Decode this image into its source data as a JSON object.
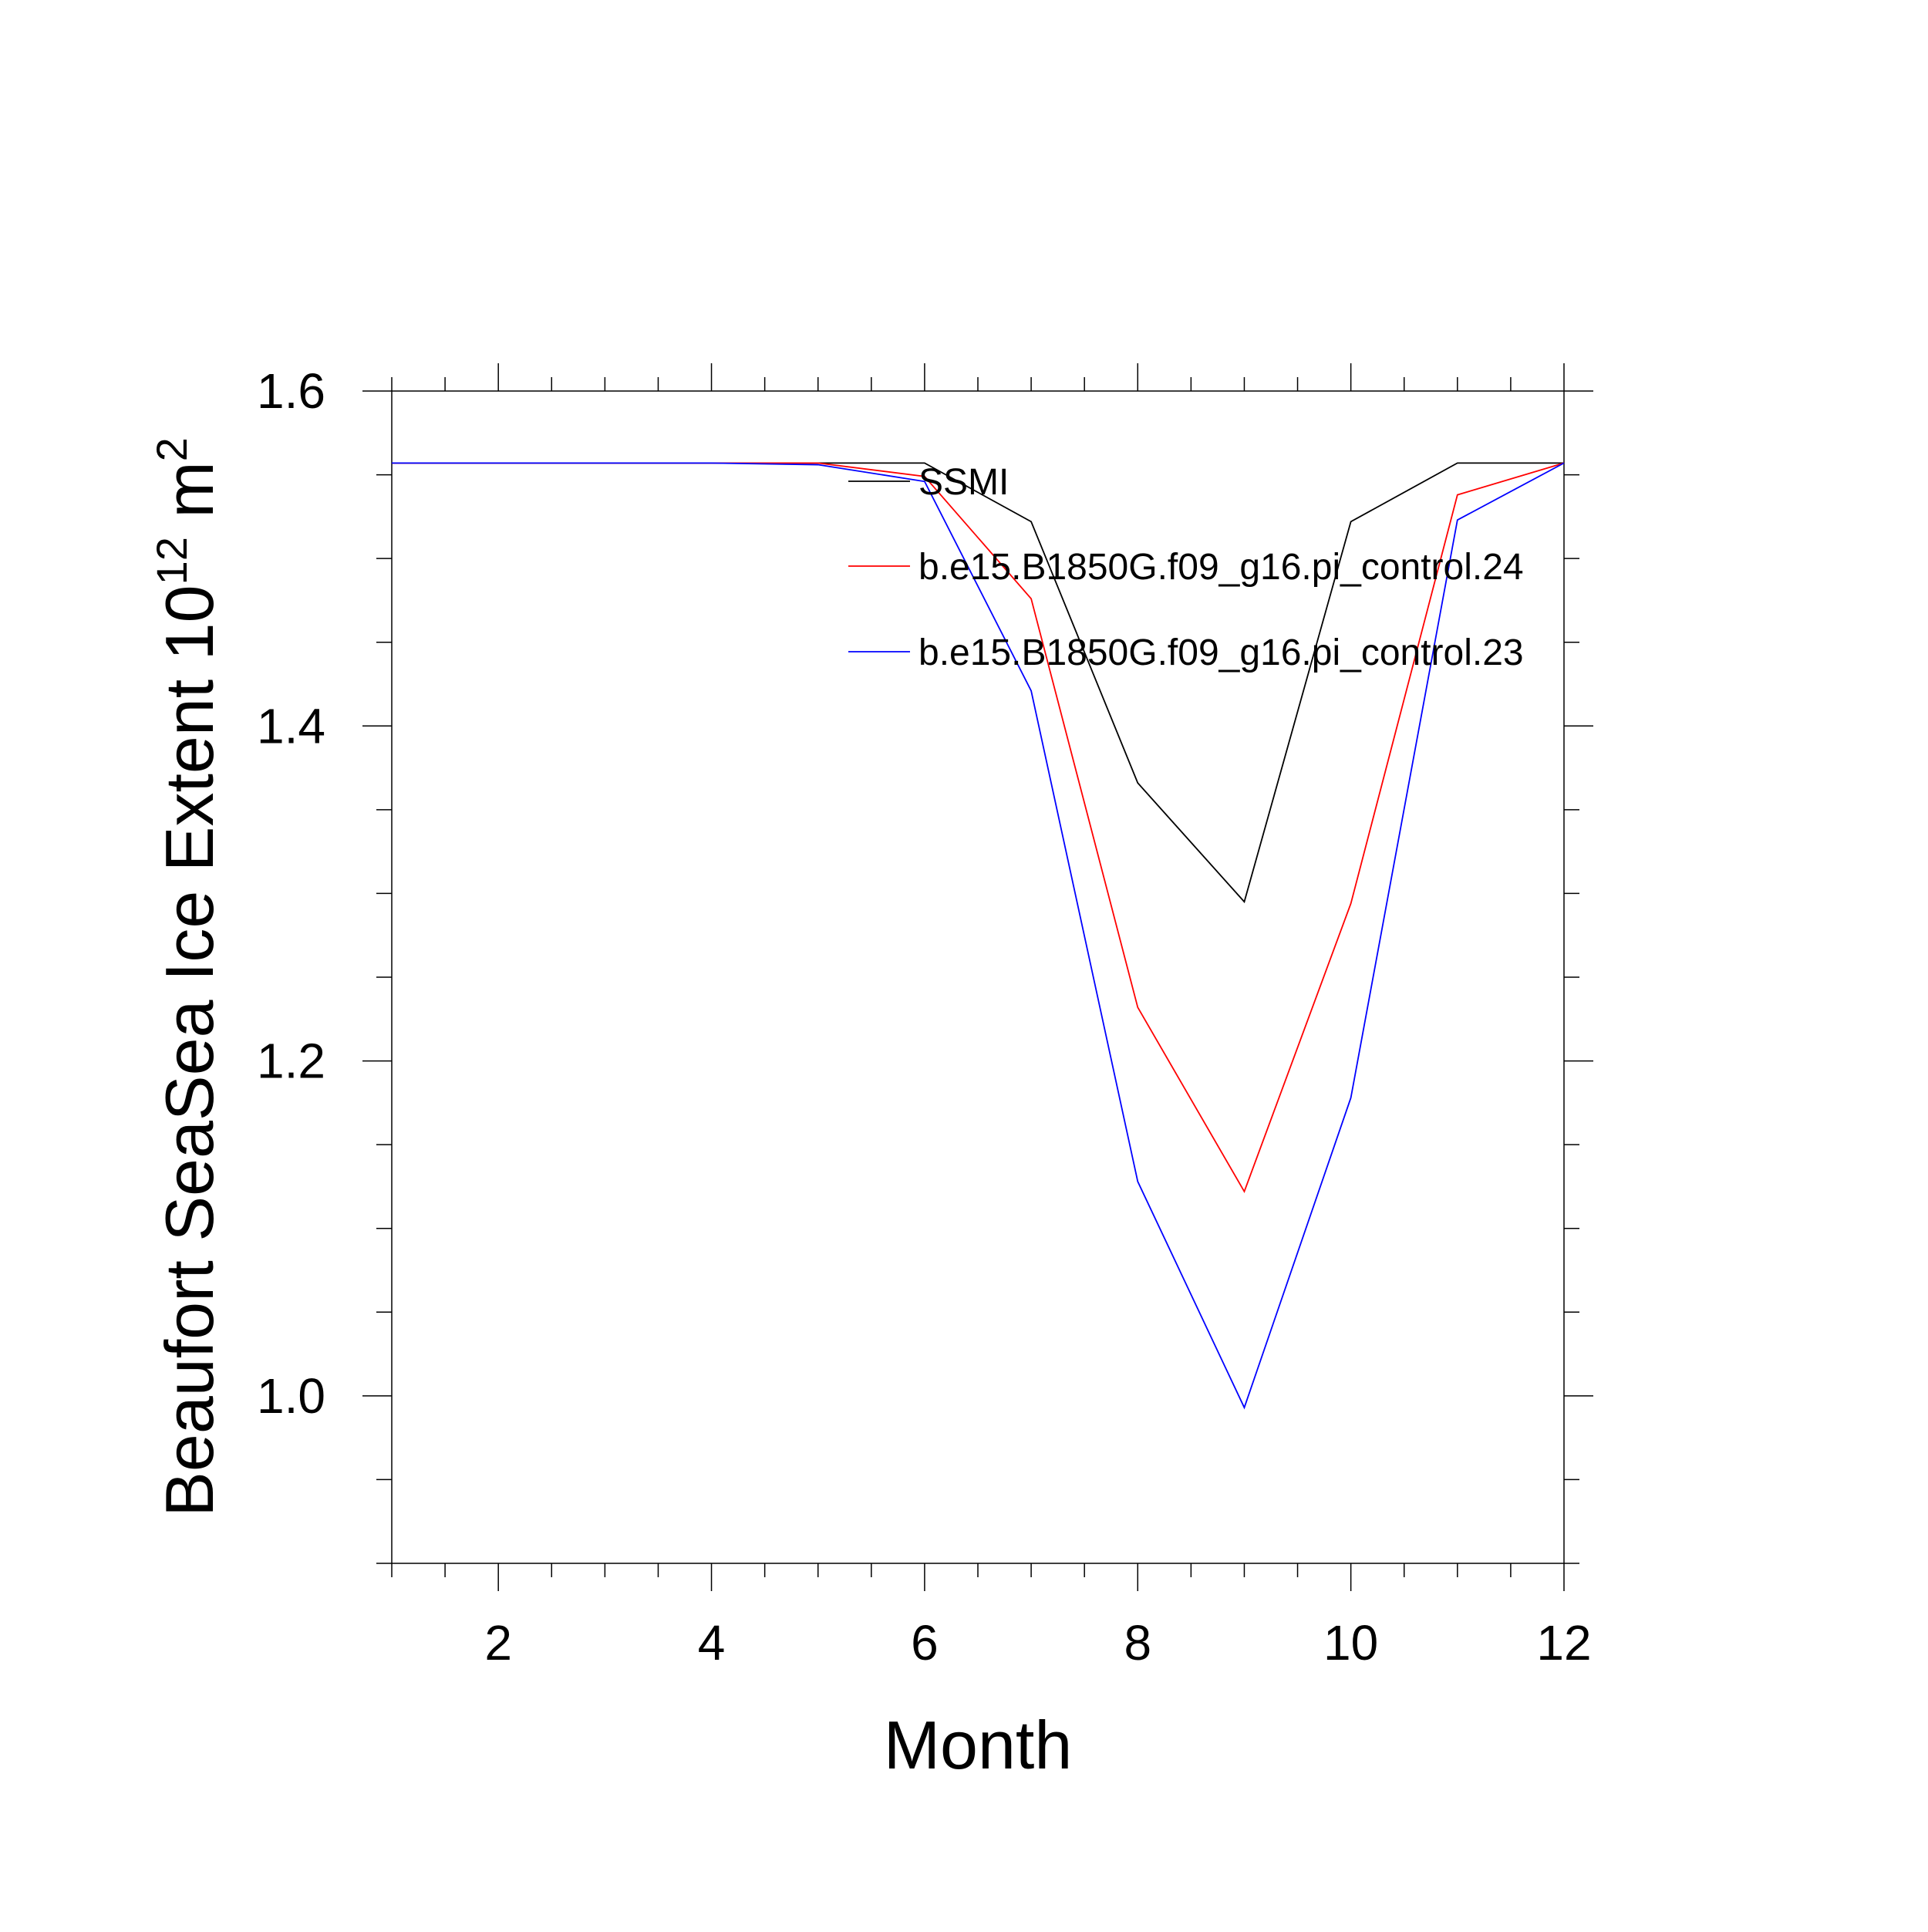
{
  "chart_data": {
    "type": "line",
    "title": "",
    "xlabel": "Month",
    "ylabel": "Beaufort SeaSea Ice Extent 10",
    "ylabel_superscript_1": "12",
    "ylabel_unit": " m",
    "ylabel_superscript_2": "2",
    "xlim": [
      1,
      12
    ],
    "ylim": [
      0.9,
      1.6
    ],
    "x_ticks": [
      2,
      4,
      6,
      8,
      10,
      12
    ],
    "x_tick_labels": [
      "2",
      "4",
      "6",
      "8",
      "10",
      "12"
    ],
    "y_ticks": [
      1.0,
      1.2,
      1.4,
      1.6
    ],
    "y_tick_labels": [
      "1.0",
      "1.2",
      "1.4",
      "1.6"
    ],
    "grid": false,
    "legend_position": "top-right",
    "x": [
      1,
      2,
      3,
      4,
      5,
      6,
      7,
      8,
      9,
      10,
      11,
      12
    ],
    "series": [
      {
        "name": "SSMI",
        "color": "#000000",
        "values": [
          1.557,
          1.557,
          1.557,
          1.557,
          1.557,
          1.557,
          1.522,
          1.366,
          1.295,
          1.522,
          1.557,
          1.557
        ]
      },
      {
        "name": "b.e15.B1850G.f09_g16.pi_control.24",
        "color": "#ff0000",
        "values": [
          1.557,
          1.557,
          1.557,
          1.557,
          1.557,
          1.549,
          1.476,
          1.232,
          1.122,
          1.294,
          1.538,
          1.557
        ]
      },
      {
        "name": "b.e15.B1850G.f09_g16.pi_control.23",
        "color": "#0000ff",
        "values": [
          1.557,
          1.557,
          1.557,
          1.557,
          1.556,
          1.546,
          1.421,
          1.128,
          0.993,
          1.178,
          1.523,
          1.557
        ]
      }
    ]
  }
}
